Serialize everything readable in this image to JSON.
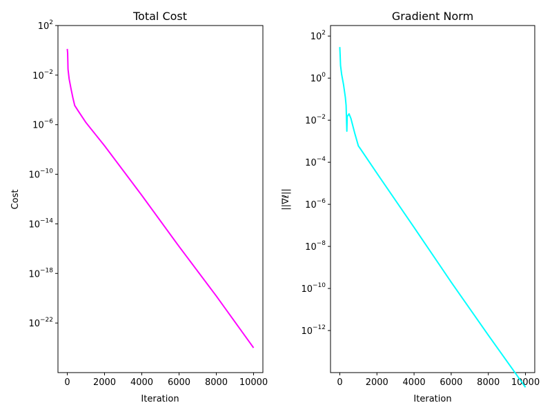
{
  "chart_data": [
    {
      "type": "line",
      "title": "Total Cost",
      "xlabel": "Iteration",
      "ylabel": "Cost",
      "yscale": "log",
      "xlim": [
        -500,
        10500
      ],
      "ylim_exp": [
        -26,
        2
      ],
      "x_ticks": [
        0,
        2000,
        4000,
        6000,
        8000,
        10000
      ],
      "y_tick_exponents": [
        2,
        -2,
        -6,
        -10,
        -14,
        -18,
        -22
      ],
      "grid": false,
      "color": "#ff00ff",
      "series": [
        {
          "points": [
            [
              0,
              1.3
            ],
            [
              20,
              0.6
            ],
            [
              40,
              0.03
            ],
            [
              100,
              0.005
            ],
            [
              200,
              0.0008
            ],
            [
              300,
              0.00015
            ],
            [
              400,
              3.5e-05
            ],
            [
              600,
              1.2e-05
            ],
            [
              1000,
              1.5e-06
            ],
            [
              2000,
              2e-08
            ],
            [
              4000,
              2e-12
            ],
            [
              6000,
              1.5e-16
            ],
            [
              8000,
              1.5e-20
            ],
            [
              10000,
              1e-24
            ]
          ]
        }
      ]
    },
    {
      "type": "line",
      "title": "Gradient Norm",
      "xlabel": "Iteration",
      "ylabel": "||∇ℓ||",
      "yscale": "log",
      "xlim": [
        -500,
        10500
      ],
      "ylim_exp": [
        -14,
        2.5
      ],
      "x_ticks": [
        0,
        2000,
        4000,
        6000,
        8000,
        10000
      ],
      "y_tick_exponents": [
        2,
        0,
        -2,
        -4,
        -6,
        -8,
        -10,
        -12
      ],
      "grid": false,
      "color": "#00ffff",
      "series": [
        {
          "points": [
            [
              0,
              30
            ],
            [
              20,
              12
            ],
            [
              40,
              4
            ],
            [
              100,
              1.5
            ],
            [
              200,
              0.5
            ],
            [
              300,
              0.12
            ],
            [
              340,
              0.05
            ],
            [
              380,
              0.003
            ],
            [
              400,
              0.015
            ],
            [
              500,
              0.02
            ],
            [
              600,
              0.012
            ],
            [
              800,
              0.0025
            ],
            [
              1000,
              0.0006
            ],
            [
              1100,
              0.00045
            ],
            [
              2000,
              3e-05
            ],
            [
              4000,
              8e-08
            ],
            [
              6000,
              2e-10
            ],
            [
              8000,
              6e-13
            ],
            [
              10000,
              2e-15
            ]
          ]
        }
      ]
    }
  ]
}
